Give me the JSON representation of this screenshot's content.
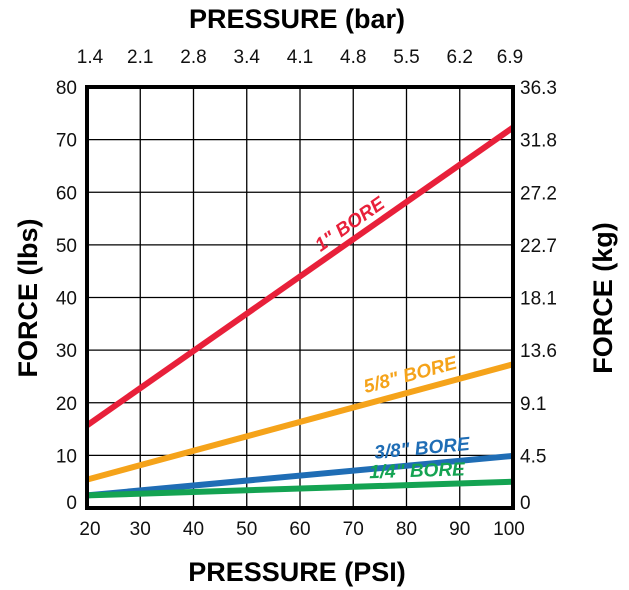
{
  "chart_data": {
    "type": "line",
    "title_top": "PRESSURE (bar)",
    "xlabel": "PRESSURE (PSI)",
    "ylabel_left": "FORCE (lbs)",
    "ylabel_right": "FORCE (kg)",
    "x_ticks": [
      "20",
      "30",
      "40",
      "50",
      "60",
      "70",
      "80",
      "90",
      "100"
    ],
    "x_ticks_top": [
      "1.4",
      "2.1",
      "2.8",
      "3.4",
      "4.1",
      "4.8",
      "5.5",
      "6.2",
      "6.9"
    ],
    "y_ticks_left": [
      "0",
      "10",
      "20",
      "30",
      "40",
      "50",
      "60",
      "70",
      "80"
    ],
    "y_ticks_right": [
      "0",
      "4.5",
      "9.1",
      "13.6",
      "18.1",
      "22.7",
      "27.2",
      "31.8",
      "36.3"
    ],
    "xlim": [
      20,
      100
    ],
    "ylim": [
      0,
      80
    ],
    "grid": true,
    "series": [
      {
        "name": "1\" BORE",
        "color": "#e8203a",
        "x": [
          20,
          100
        ],
        "y": [
          15.7,
          72.3
        ]
      },
      {
        "name": "5/8\" BORE",
        "color": "#f5a31a",
        "x": [
          20,
          100
        ],
        "y": [
          5.4,
          27.3
        ]
      },
      {
        "name": "3/8\" BORE",
        "color": "#1f6db5",
        "x": [
          20,
          100
        ],
        "y": [
          2.4,
          9.9
        ]
      },
      {
        "name": "1/4\" BORE",
        "color": "#14a352",
        "x": [
          20,
          100
        ],
        "y": [
          2.4,
          5.0
        ]
      }
    ]
  }
}
